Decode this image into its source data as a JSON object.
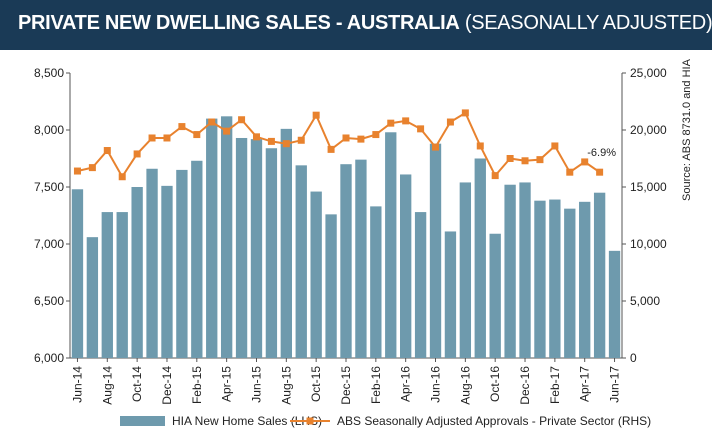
{
  "header": {
    "title": "PRIVATE NEW DWELLING SALES -  AUSTRALIA",
    "subtitle": "(SEASONALLY ADJUSTED)"
  },
  "colors": {
    "bar": "#6e9aad",
    "line": "#e8822e",
    "banner": "#1a3a56"
  },
  "chart_data": {
    "type": "bar",
    "categories": [
      "Jun-14",
      "Jul-14",
      "Aug-14",
      "Sep-14",
      "Oct-14",
      "Nov-14",
      "Dec-14",
      "Jan-15",
      "Feb-15",
      "Mar-15",
      "Apr-15",
      "May-15",
      "Jun-15",
      "Jul-15",
      "Aug-15",
      "Sep-15",
      "Oct-15",
      "Nov-15",
      "Dec-15",
      "Jan-16",
      "Feb-16",
      "Mar-16",
      "Apr-16",
      "May-16",
      "Jun-16",
      "Jul-16",
      "Aug-16",
      "Sep-16",
      "Oct-16",
      "Nov-16",
      "Dec-16",
      "Jan-17",
      "Feb-17",
      "Mar-17",
      "Apr-17",
      "May-17",
      "Jun-17"
    ],
    "xtick_labels": [
      "Jun-14",
      "Aug-14",
      "Oct-14",
      "Dec-14",
      "Feb-15",
      "Apr-15",
      "Jun-15",
      "Aug-15",
      "Oct-15",
      "Dec-15",
      "Feb-16",
      "Apr-16",
      "Jun-16",
      "Aug-16",
      "Oct-16",
      "Dec-16",
      "Feb-17",
      "Apr-17",
      "Jun-17"
    ],
    "series": [
      {
        "name": "HIA New Home Sales (LHS)",
        "type": "bar",
        "axis": "left",
        "values": [
          7480,
          7060,
          7280,
          7280,
          7500,
          7660,
          7510,
          7650,
          7730,
          8100,
          8120,
          7930,
          7920,
          7840,
          8010,
          7690,
          7460,
          7260,
          7700,
          7740,
          7330,
          7980,
          7610,
          7280,
          7880,
          7110,
          7540,
          7750,
          7090,
          7520,
          7540,
          7380,
          7390,
          7310,
          7370,
          7450,
          6940
        ]
      },
      {
        "name": "ABS Seasonally Adjusted Approvals - Private Sector (RHS)",
        "type": "line",
        "axis": "right",
        "values": [
          16400,
          16700,
          18200,
          15900,
          17900,
          19300,
          19300,
          20300,
          19600,
          20700,
          19900,
          20900,
          19400,
          19000,
          18800,
          19100,
          21300,
          18300,
          19300,
          19200,
          19600,
          20600,
          20800,
          20100,
          18500,
          20700,
          21500,
          18600,
          16000,
          17500,
          17300,
          17400,
          18600,
          16300,
          17200,
          16300,
          null
        ]
      }
    ],
    "annotations": [
      {
        "text": "-6.9%",
        "category": "May-17"
      }
    ],
    "ylim_left": [
      6000,
      8500
    ],
    "yticks_left": [
      "6,000",
      "6,500",
      "7,000",
      "7,500",
      "8,000",
      "8,500"
    ],
    "ylim_right": [
      0,
      25000
    ],
    "yticks_right": [
      "0",
      "5,000",
      "10,000",
      "15,000",
      "20,000",
      "25,000"
    ],
    "right_axis_label": "Source: ABS 8731.0 and HIA",
    "grid": false,
    "legend_position": "bottom"
  }
}
